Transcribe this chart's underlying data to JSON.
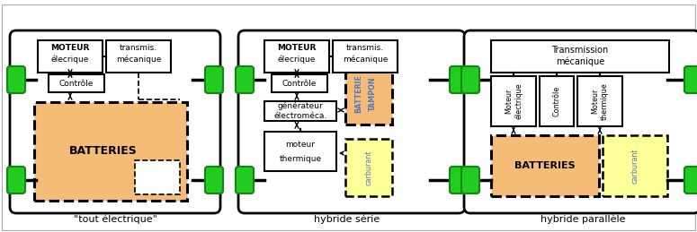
{
  "fig_width": 7.75,
  "fig_height": 2.59,
  "dpi": 100,
  "green": "#22cc22",
  "green_dark": "#118811",
  "orange_fill": "#f5bc78",
  "yellow_fill": "#ffff99",
  "blue_text": "#5577bb",
  "black": "#000000",
  "white": "#ffffff",
  "label1": "\"tout électrique\"",
  "label2": "hybride série",
  "label3": "hybride parallèle"
}
